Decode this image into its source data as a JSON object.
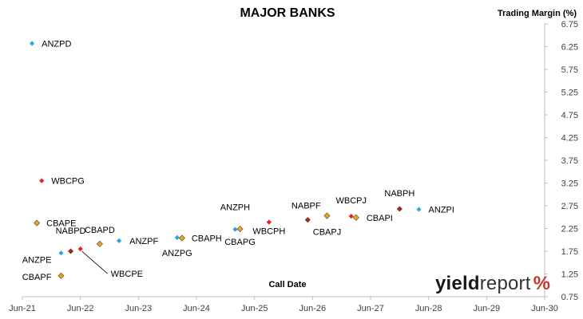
{
  "chart_data": {
    "type": "scatter",
    "title": "MAJOR BANKS",
    "xlabel": "Call Date",
    "ylabel": "Trading Margin  (%)",
    "x_ticks": [
      "Jun-21",
      "Jun-22",
      "Jun-23",
      "Jun-24",
      "Jun-25",
      "Jun-26",
      "Jun-27",
      "Jun-28",
      "Jun-29",
      "Jun-30"
    ],
    "xlim": [
      "Jun-21",
      "Jun-30"
    ],
    "y_ticks": [
      "0.75",
      "1.25",
      "1.75",
      "2.25",
      "2.75",
      "3.25",
      "3.75",
      "4.25",
      "4.75",
      "5.25",
      "5.75",
      "6.25",
      "6.75"
    ],
    "ylim": [
      0.75,
      6.75
    ],
    "y_axis_side": "right",
    "grid": "none",
    "legend": "none",
    "colors": {
      "ANZ": "#29a8e0",
      "CBA": "#e0a82e",
      "NAB": "#b52025",
      "WBC": "#e8211c"
    },
    "points": [
      {
        "label": "ANZPD",
        "x": "2021-09",
        "y": 6.32,
        "group": "ANZ"
      },
      {
        "label": "WBCPG",
        "x": "2021-11",
        "y": 3.3,
        "group": "WBC"
      },
      {
        "label": "CBAPE",
        "x": "2021-10",
        "y": 2.37,
        "group": "CBA"
      },
      {
        "label": "ANZPE",
        "x": "2022-03",
        "y": 1.71,
        "group": "ANZ"
      },
      {
        "label": "CBAPF",
        "x": "2022-03",
        "y": 1.21,
        "group": "CBA"
      },
      {
        "label": "NABPD",
        "x": "2022-05",
        "y": 1.75,
        "group": "NAB"
      },
      {
        "label": "WBCPE",
        "x": "2022-07",
        "y": 1.8,
        "group": "WBC"
      },
      {
        "label": "CBAPD",
        "x": "2022-11",
        "y": 1.91,
        "group": "CBA"
      },
      {
        "label": "ANZPF",
        "x": "2023-03",
        "y": 1.98,
        "group": "ANZ"
      },
      {
        "label": "ANZPG",
        "x": "2024-03",
        "y": 2.05,
        "group": "ANZ"
      },
      {
        "label": "CBAPH",
        "x": "2024-04",
        "y": 2.04,
        "group": "CBA"
      },
      {
        "label": "ANZPH",
        "x": "2025-03",
        "y": 2.23,
        "group": "ANZ"
      },
      {
        "label": "CBAPG",
        "x": "2025-04",
        "y": 2.24,
        "group": "CBA"
      },
      {
        "label": "WBCPH",
        "x": "2025-10",
        "y": 2.39,
        "group": "WBC"
      },
      {
        "label": "NABPF",
        "x": "2026-06",
        "y": 2.44,
        "group": "NAB"
      },
      {
        "label": "CBAPJ",
        "x": "2026-10",
        "y": 2.53,
        "group": "CBA"
      },
      {
        "label": "WBCPJ",
        "x": "2027-03",
        "y": 2.52,
        "group": "WBC"
      },
      {
        "label": "CBAPI",
        "x": "2027-04",
        "y": 2.49,
        "group": "CBA"
      },
      {
        "label": "NABPH",
        "x": "2028-01",
        "y": 2.68,
        "group": "NAB"
      },
      {
        "label": "ANZPI",
        "x": "2028-05",
        "y": 2.67,
        "group": "ANZ"
      }
    ]
  },
  "logo": {
    "word1": "yield",
    "word2": "report",
    "symbol": "%",
    "symbol_color": "#c0392b"
  }
}
